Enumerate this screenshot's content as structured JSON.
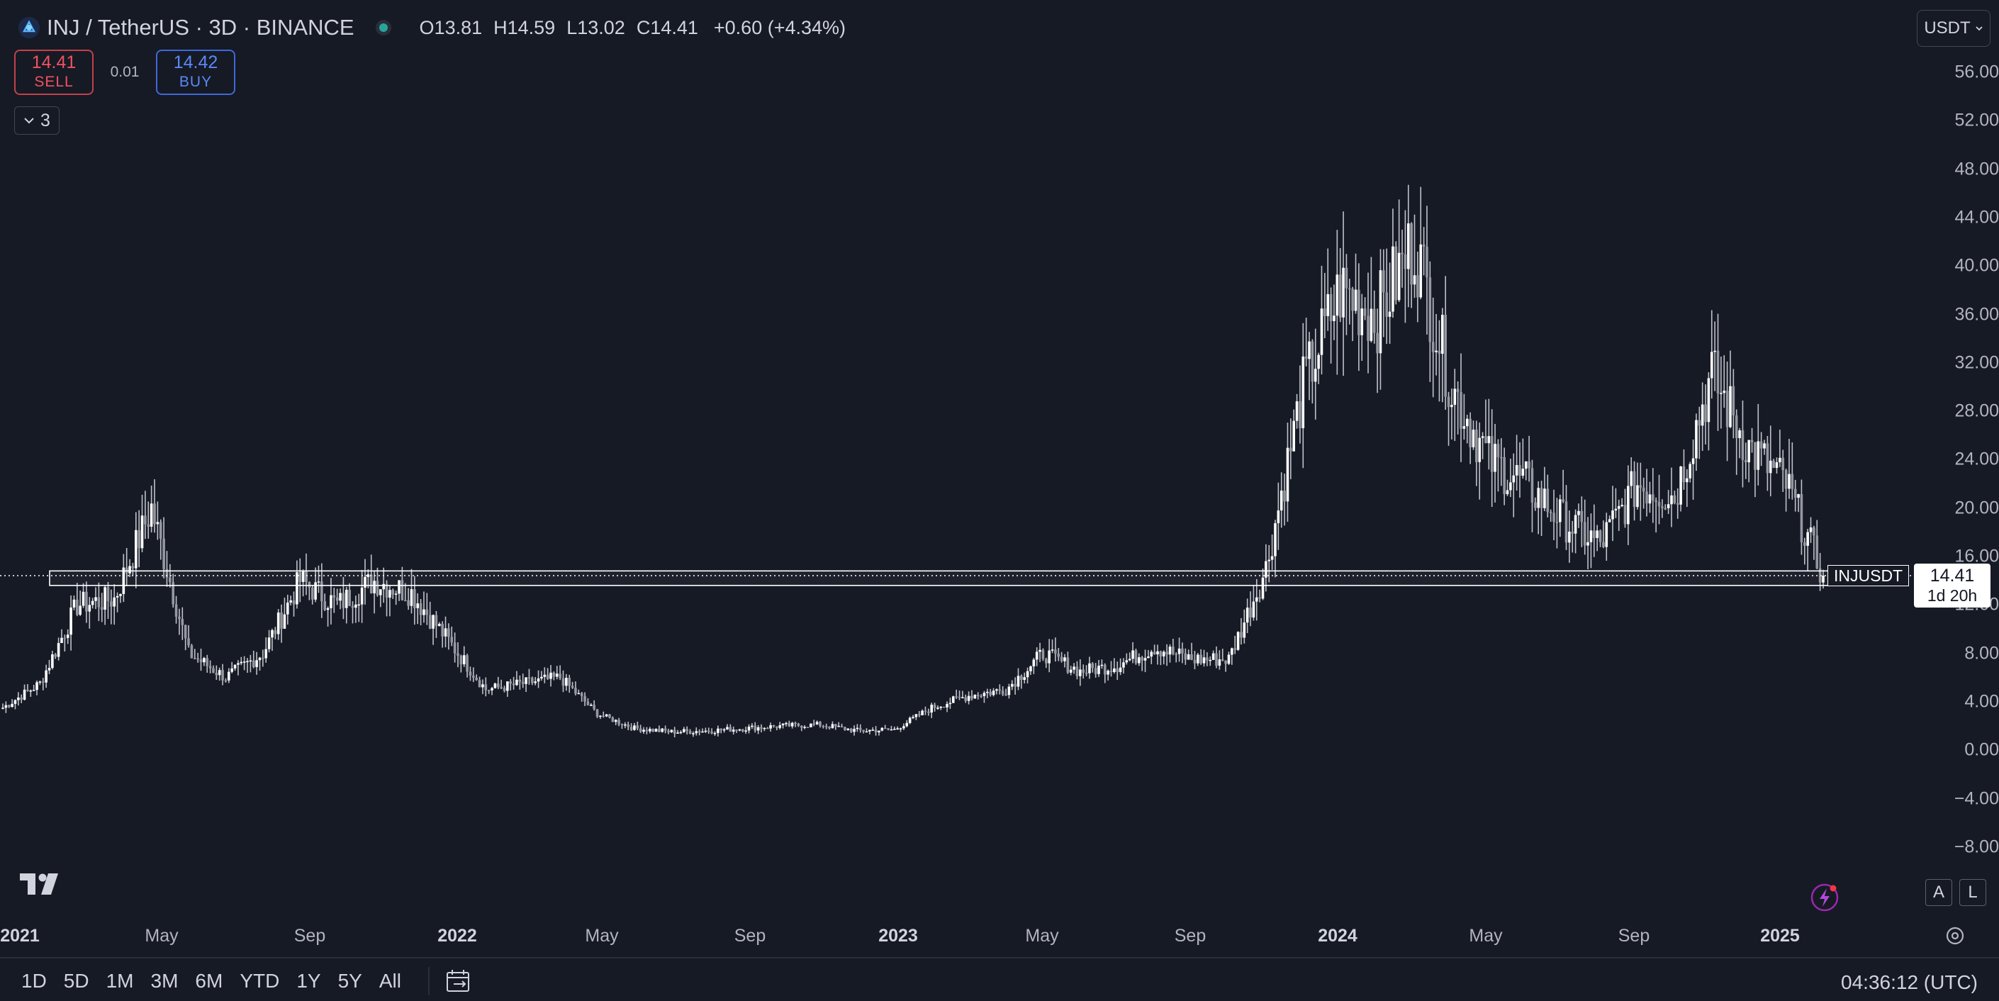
{
  "header": {
    "symbol_title": "INJ / TetherUS · 3D · BINANCE",
    "ohlc": {
      "o_label": "O",
      "o_value": "13.81",
      "h_label": "H",
      "h_value": "14.59",
      "l_label": "L",
      "l_value": "13.02",
      "c_label": "C",
      "c_value": "14.41",
      "change": "+0.60 (+4.34%)"
    }
  },
  "trade": {
    "sell_price": "14.41",
    "sell_label": "SELL",
    "spread": "0.01",
    "buy_price": "14.42",
    "buy_label": "BUY"
  },
  "indicators": {
    "count": "3"
  },
  "currency": {
    "label": "USDT"
  },
  "price_axis": [
    "56.00",
    "52.00",
    "48.00",
    "44.00",
    "40.00",
    "36.00",
    "32.00",
    "28.00",
    "24.00",
    "20.00",
    "16.00",
    "12.00",
    "8.00",
    "4.00",
    "0.00",
    "−4.00",
    "−8.00"
  ],
  "current": {
    "symbol": "INJUSDT",
    "price": "14.41",
    "countdown": "1d 20h"
  },
  "time_axis": [
    {
      "label": "2021",
      "year": true
    },
    {
      "label": "May",
      "year": false
    },
    {
      "label": "Sep",
      "year": false
    },
    {
      "label": "2022",
      "year": true
    },
    {
      "label": "May",
      "year": false
    },
    {
      "label": "Sep",
      "year": false
    },
    {
      "label": "2023",
      "year": true
    },
    {
      "label": "May",
      "year": false
    },
    {
      "label": "Sep",
      "year": false
    },
    {
      "label": "2024",
      "year": true
    },
    {
      "label": "May",
      "year": false
    },
    {
      "label": "Sep",
      "year": false
    },
    {
      "label": "2025",
      "year": true
    }
  ],
  "scale_buttons": {
    "auto": "A",
    "log": "L"
  },
  "toolbar": {
    "ranges": [
      "1D",
      "5D",
      "1M",
      "3M",
      "6M",
      "YTD",
      "1Y",
      "5Y",
      "All"
    ],
    "clock": "04:36:12 (UTC)"
  },
  "colors": {
    "background": "#161a25",
    "candle": "#ffffff",
    "sell": "#f0525f",
    "buy": "#5b88f5"
  },
  "chart_data": {
    "type": "candlestick",
    "interval": "3D",
    "ylim": [
      -10,
      58
    ],
    "x": [
      "2021-01",
      "2021-02",
      "2021-03",
      "2021-04",
      "2021-05",
      "2021-06",
      "2021-07",
      "2021-08",
      "2021-09",
      "2021-10",
      "2021-11",
      "2021-12",
      "2022-01",
      "2022-02",
      "2022-03",
      "2022-04",
      "2022-05",
      "2022-06",
      "2022-07",
      "2022-08",
      "2022-09",
      "2022-10",
      "2022-11",
      "2022-12",
      "2023-01",
      "2023-02",
      "2023-03",
      "2023-04",
      "2023-05",
      "2023-06",
      "2023-07",
      "2023-08",
      "2023-09",
      "2023-10",
      "2023-11",
      "2023-12",
      "2024-01",
      "2024-02",
      "2024-03",
      "2024-04",
      "2024-05",
      "2024-06",
      "2024-07",
      "2024-08",
      "2024-09",
      "2024-10",
      "2024-11",
      "2024-12",
      "2025-01",
      "2025-02"
    ],
    "close": [
      3.5,
      5.5,
      12,
      12.5,
      20,
      8,
      6,
      8,
      14,
      12,
      14,
      13,
      9,
      5,
      5.5,
      6,
      3,
      1.8,
      1.5,
      1.6,
      1.8,
      2,
      2.1,
      1.6,
      1.7,
      3.5,
      4.5,
      5,
      8,
      6.5,
      7,
      8.5,
      7.5,
      7.5,
      15,
      30,
      38,
      36,
      42,
      30,
      24,
      22,
      19,
      17,
      22,
      21,
      31,
      25,
      22,
      14.41
    ],
    "zones": [
      {
        "name": "support-resistance-band",
        "low": 13.6,
        "high": 14.8
      }
    ]
  }
}
